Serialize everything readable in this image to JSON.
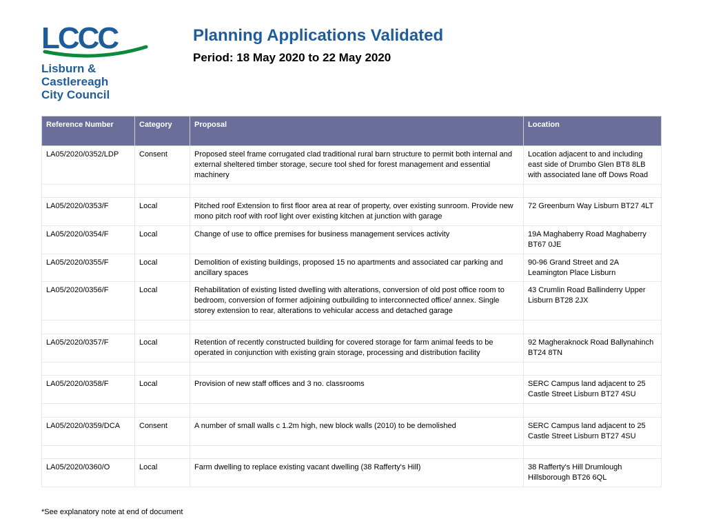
{
  "header": {
    "title": "Planning Applications Validated",
    "period": "Period: 18 May 2020 to 22 May 2020",
    "logo_text_line1": "Lisburn &",
    "logo_text_line2": "Castlereagh",
    "logo_text_line3": "City Council",
    "logo_letters": "LCCC",
    "logo_primary_color": "#1f5c99",
    "logo_accent_color": "#0a8a3a"
  },
  "table": {
    "header_bg": "#6a6e99",
    "header_fg": "#ffffff",
    "columns": [
      "Reference Number",
      "Category",
      "Proposal",
      "Location"
    ],
    "rows": [
      {
        "ref": "LA05/2020/0352/LDP",
        "cat": "Consent",
        "prop": "Proposed steel frame corrugated clad traditional rural barn structure to permit both internal and external sheltered timber storage, secure tool shed for forest management and essential machinery",
        "loc": "Location adjacent to and including east side of Drumbo Glen BT8 8LB with associated lane off Dows Road"
      },
      {
        "ref": "LA05/2020/0353/F",
        "cat": "Local",
        "prop": "Pitched roof Extension to first floor area at rear of property, over existing sunroom. Provide new mono pitch roof with roof light over existing kitchen at junction with garage",
        "loc": "72 Greenburn Way Lisburn BT27 4LT"
      },
      {
        "ref": "LA05/2020/0354/F",
        "cat": "Local",
        "prop": "Change of use to office premises for business management services activity",
        "loc": "19A Maghaberry Road Maghaberry BT67 0JE"
      },
      {
        "ref": "LA05/2020/0355/F",
        "cat": "Local",
        "prop": "Demolition of existing buildings, proposed 15 no apartments and associated car parking and ancillary spaces",
        "loc": "90-96 Grand Street and 2A Leamington Place Lisburn"
      },
      {
        "ref": "LA05/2020/0356/F",
        "cat": "Local",
        "prop": "Rehabilitation of existing listed dwelling with alterations, conversion of old post office room to bedroom, conversion of former adjoining outbuilding to interconnected office/ annex. Single storey extension to rear, alterations to vehicular access and detached garage",
        "loc": "43 Crumlin Road Ballinderry Upper Lisburn BT28 2JX"
      },
      {
        "ref": "LA05/2020/0357/F",
        "cat": "Local",
        "prop": "Retention of recently constructed building for covered storage for farm animal feeds to be operated in conjunction with existing grain storage, processing and distribution facility",
        "loc": "92 Magheraknock Road Ballynahinch BT24 8TN"
      },
      {
        "ref": "LA05/2020/0358/F",
        "cat": "Local",
        "prop": "Provision of new staff offices and 3 no. classrooms",
        "loc": "SERC Campus land adjacent to 25 Castle Street Lisburn BT27 4SU"
      },
      {
        "ref": "LA05/2020/0359/DCA",
        "cat": "Consent",
        "prop": "A number of small walls c 1.2m high, new block walls (2010) to be demolished",
        "loc": "SERC Campus land adjacent to 25 Castle Street Lisburn BT27 4SU"
      },
      {
        "ref": "LA05/2020/0360/O",
        "cat": "Local",
        "prop": "Farm dwelling to replace existing vacant dwelling (38 Rafferty's Hill)",
        "loc": "38 Rafferty's Hill Drumlough Hillsborough BT26 6QL"
      }
    ]
  },
  "footnote": "*See explanatory note at end of document"
}
